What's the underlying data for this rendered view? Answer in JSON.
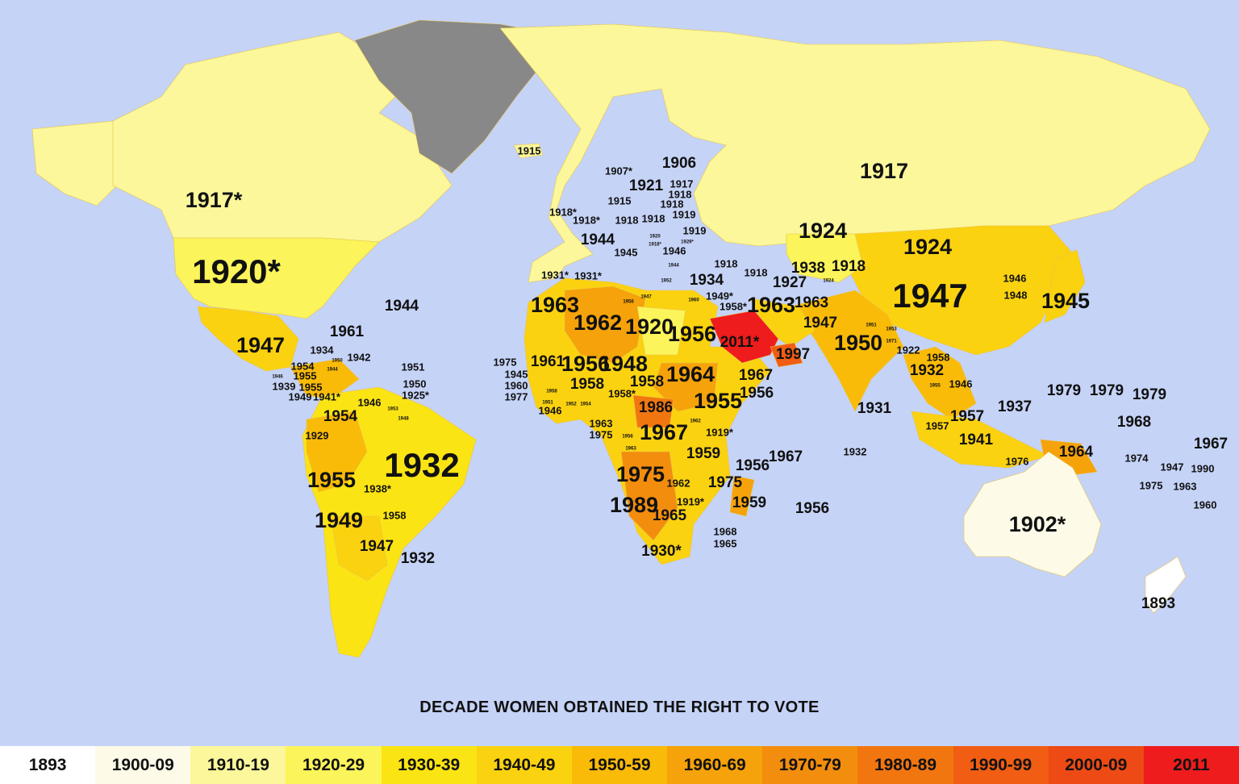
{
  "title": "DECADE WOMEN OBTAINED THE RIGHT TO VOTE",
  "colors": {
    "ocean": "#c5d3f7",
    "no_data": "#888888",
    "1893": "#ffffff",
    "1900-09": "#fdfbe8",
    "1910-19": "#fbf79a",
    "1920-29": "#fbf45a",
    "1930-39": "#fbe413",
    "1940-49": "#fbd210",
    "1950-59": "#f9bb08",
    "1960-69": "#f6a20a",
    "1970-79": "#f38d0e",
    "1980-89": "#f27610",
    "1990-99": "#f05d13",
    "2000-09": "#ee4a15",
    "2011": "#ee1c1c"
  },
  "legend": [
    {
      "label": "1893",
      "color": "#ffffff"
    },
    {
      "label": "1900-09",
      "color": "#fdfbe8"
    },
    {
      "label": "1910-19",
      "color": "#fbf79a"
    },
    {
      "label": "1920-29",
      "color": "#fbf45a"
    },
    {
      "label": "1930-39",
      "color": "#fbe413"
    },
    {
      "label": "1940-49",
      "color": "#fbd210"
    },
    {
      "label": "1950-59",
      "color": "#f9bb08"
    },
    {
      "label": "1960-69",
      "color": "#f6a20a"
    },
    {
      "label": "1970-79",
      "color": "#f38d0e"
    },
    {
      "label": "1980-89",
      "color": "#f27610"
    },
    {
      "label": "1990-99",
      "color": "#f05d13"
    },
    {
      "label": "2000-09",
      "color": "#ee4a15"
    },
    {
      "label": "2011",
      "color": "#ee1c1c"
    }
  ],
  "regions": [
    {
      "name": "Alaska",
      "year": "1917*"
    },
    {
      "name": "Canada",
      "year": "1917*"
    },
    {
      "name": "United States",
      "year": "1920*"
    },
    {
      "name": "Greenland",
      "year": ""
    },
    {
      "name": "Iceland",
      "year": "1915"
    },
    {
      "name": "Mexico",
      "year": "1947"
    },
    {
      "name": "South America",
      "year": "1932"
    },
    {
      "name": "Africa",
      "year": "1962"
    },
    {
      "name": "Saudi Arabia",
      "year": "2011*"
    },
    {
      "name": "Russia",
      "year": "1917"
    },
    {
      "name": "China",
      "year": "1947"
    },
    {
      "name": "India",
      "year": "1950"
    },
    {
      "name": "Australia",
      "year": "1902*"
    },
    {
      "name": "New Zealand",
      "year": "1893"
    },
    {
      "name": "Japan",
      "year": "1945"
    }
  ],
  "labels": [
    {
      "text": "1917*",
      "size": "l"
    },
    {
      "text": "1920*",
      "size": "xl"
    },
    {
      "text": "1915",
      "size": "s"
    },
    {
      "text": "1944",
      "size": "m"
    },
    {
      "text": "1961",
      "size": "m"
    },
    {
      "text": "1947",
      "size": "l"
    },
    {
      "text": "1934",
      "size": "s"
    },
    {
      "text": "1950",
      "size": "xs"
    },
    {
      "text": "1942",
      "size": "s"
    },
    {
      "text": "1954",
      "size": "s"
    },
    {
      "text": "1944",
      "size": "xs"
    },
    {
      "text": "1946",
      "size": "xs"
    },
    {
      "text": "1955",
      "size": "s"
    },
    {
      "text": "1939",
      "size": "s"
    },
    {
      "text": "1955",
      "size": "s"
    },
    {
      "text": "1949",
      "size": "s"
    },
    {
      "text": "1941*",
      "size": "s"
    },
    {
      "text": "1951",
      "size": "s"
    },
    {
      "text": "1950",
      "size": "s"
    },
    {
      "text": "1925*",
      "size": "s"
    },
    {
      "text": "1946",
      "size": "s"
    },
    {
      "text": "1953",
      "size": "xs"
    },
    {
      "text": "1948",
      "size": "xs"
    },
    {
      "text": "1954",
      "size": "m"
    },
    {
      "text": "1929",
      "size": "s"
    },
    {
      "text": "1932",
      "size": "xl"
    },
    {
      "text": "1955",
      "size": "l"
    },
    {
      "text": "1938*",
      "size": "s"
    },
    {
      "text": "1958",
      "size": "s"
    },
    {
      "text": "1949",
      "size": "l"
    },
    {
      "text": "1947",
      "size": "m"
    },
    {
      "text": "1932",
      "size": "m"
    },
    {
      "text": "1907*",
      "size": "s"
    },
    {
      "text": "1906",
      "size": "m"
    },
    {
      "text": "1921",
      "size": "m"
    },
    {
      "text": "1917",
      "size": "s"
    },
    {
      "text": "1918",
      "size": "s"
    },
    {
      "text": "1918",
      "size": "s"
    },
    {
      "text": "1915",
      "size": "s"
    },
    {
      "text": "1919",
      "size": "s"
    },
    {
      "text": "1918*",
      "size": "s"
    },
    {
      "text": "1918*",
      "size": "s"
    },
    {
      "text": "1918",
      "size": "s"
    },
    {
      "text": "1918",
      "size": "s"
    },
    {
      "text": "1919",
      "size": "s"
    },
    {
      "text": "1944",
      "size": "m"
    },
    {
      "text": "1920",
      "size": "xs"
    },
    {
      "text": "1918*",
      "size": "xs"
    },
    {
      "text": "1929*",
      "size": "xs"
    },
    {
      "text": "1945",
      "size": "s"
    },
    {
      "text": "1946",
      "size": "s"
    },
    {
      "text": "1944",
      "size": "xs"
    },
    {
      "text": "1952",
      "size": "xs"
    },
    {
      "text": "1931*",
      "size": "s"
    },
    {
      "text": "1931*",
      "size": "s"
    },
    {
      "text": "1918",
      "size": "s"
    },
    {
      "text": "1918",
      "size": "s"
    },
    {
      "text": "1934",
      "size": "m"
    },
    {
      "text": "1917",
      "size": "l"
    },
    {
      "text": "1924",
      "size": "l"
    },
    {
      "text": "1924",
      "size": "l"
    },
    {
      "text": "1938",
      "size": "m"
    },
    {
      "text": "1918",
      "size": "m"
    },
    {
      "text": "1927",
      "size": "m"
    },
    {
      "text": "1924",
      "size": "xs"
    },
    {
      "text": "1947",
      "size": "xl"
    },
    {
      "text": "1946",
      "size": "s"
    },
    {
      "text": "1948",
      "size": "s"
    },
    {
      "text": "1945",
      "size": "l"
    },
    {
      "text": "1963",
      "size": "l"
    },
    {
      "text": "1963",
      "size": "m"
    },
    {
      "text": "1947",
      "size": "m"
    },
    {
      "text": "1949*",
      "size": "s"
    },
    {
      "text": "1958*",
      "size": "s"
    },
    {
      "text": "1960",
      "size": "xs"
    },
    {
      "text": "1950",
      "size": "l"
    },
    {
      "text": "1951",
      "size": "xs"
    },
    {
      "text": "1953",
      "size": "xs"
    },
    {
      "text": "1971",
      "size": "xs"
    },
    {
      "text": "1922",
      "size": "s"
    },
    {
      "text": "1958",
      "size": "s"
    },
    {
      "text": "1932",
      "size": "m"
    },
    {
      "text": "1955",
      "size": "xs"
    },
    {
      "text": "1946",
      "size": "s"
    },
    {
      "text": "1963",
      "size": "l"
    },
    {
      "text": "1962",
      "size": "l"
    },
    {
      "text": "1920",
      "size": "l"
    },
    {
      "text": "1956",
      "size": "l"
    },
    {
      "text": "2011*",
      "size": "m"
    },
    {
      "text": "1997",
      "size": "m"
    },
    {
      "text": "1956",
      "size": "xs"
    },
    {
      "text": "1947",
      "size": "xs"
    },
    {
      "text": "1975",
      "size": "s"
    },
    {
      "text": "1945",
      "size": "s"
    },
    {
      "text": "1960",
      "size": "s"
    },
    {
      "text": "1977",
      "size": "s"
    },
    {
      "text": "1961",
      "size": "m"
    },
    {
      "text": "1956",
      "size": "l"
    },
    {
      "text": "1948",
      "size": "l"
    },
    {
      "text": "1958",
      "size": "m"
    },
    {
      "text": "1958",
      "size": "m"
    },
    {
      "text": "1958*",
      "size": "s"
    },
    {
      "text": "1964",
      "size": "l"
    },
    {
      "text": "1967",
      "size": "m"
    },
    {
      "text": "1956",
      "size": "m"
    },
    {
      "text": "1955",
      "size": "l"
    },
    {
      "text": "1958",
      "size": "xs"
    },
    {
      "text": "1951",
      "size": "xs"
    },
    {
      "text": "1952",
      "size": "xs"
    },
    {
      "text": "1954",
      "size": "xs"
    },
    {
      "text": "1946",
      "size": "s"
    },
    {
      "text": "1986",
      "size": "m"
    },
    {
      "text": "1963",
      "size": "s"
    },
    {
      "text": "1975",
      "size": "s"
    },
    {
      "text": "1956",
      "size": "xs"
    },
    {
      "text": "1963",
      "size": "xs"
    },
    {
      "text": "1967",
      "size": "l"
    },
    {
      "text": "1962",
      "size": "xs"
    },
    {
      "text": "1919*",
      "size": "s"
    },
    {
      "text": "1959",
      "size": "m"
    },
    {
      "text": "1975",
      "size": "l"
    },
    {
      "text": "1962",
      "size": "s"
    },
    {
      "text": "1975",
      "size": "m"
    },
    {
      "text": "1989",
      "size": "l"
    },
    {
      "text": "1965",
      "size": "m"
    },
    {
      "text": "1919*",
      "size": "s"
    },
    {
      "text": "1959",
      "size": "m"
    },
    {
      "text": "1956",
      "size": "m"
    },
    {
      "text": "1967",
      "size": "m"
    },
    {
      "text": "1968",
      "size": "s"
    },
    {
      "text": "1965",
      "size": "s"
    },
    {
      "text": "1930*",
      "size": "m"
    },
    {
      "text": "1956",
      "size": "m"
    },
    {
      "text": "1931",
      "size": "m"
    },
    {
      "text": "1932",
      "size": "s"
    },
    {
      "text": "1937",
      "size": "m"
    },
    {
      "text": "1957",
      "size": "m"
    },
    {
      "text": "1957",
      "size": "s"
    },
    {
      "text": "1941",
      "size": "m"
    },
    {
      "text": "1976",
      "size": "s"
    },
    {
      "text": "1964",
      "size": "m"
    },
    {
      "text": "1979",
      "size": "m"
    },
    {
      "text": "1979",
      "size": "m"
    },
    {
      "text": "1979",
      "size": "m"
    },
    {
      "text": "1968",
      "size": "m"
    },
    {
      "text": "1967",
      "size": "m"
    },
    {
      "text": "1974",
      "size": "s"
    },
    {
      "text": "1947",
      "size": "s"
    },
    {
      "text": "1990",
      "size": "s"
    },
    {
      "text": "1975",
      "size": "s"
    },
    {
      "text": "1963",
      "size": "s"
    },
    {
      "text": "1960",
      "size": "s"
    },
    {
      "text": "1902*",
      "size": "l"
    },
    {
      "text": "1893",
      "size": "m"
    }
  ]
}
